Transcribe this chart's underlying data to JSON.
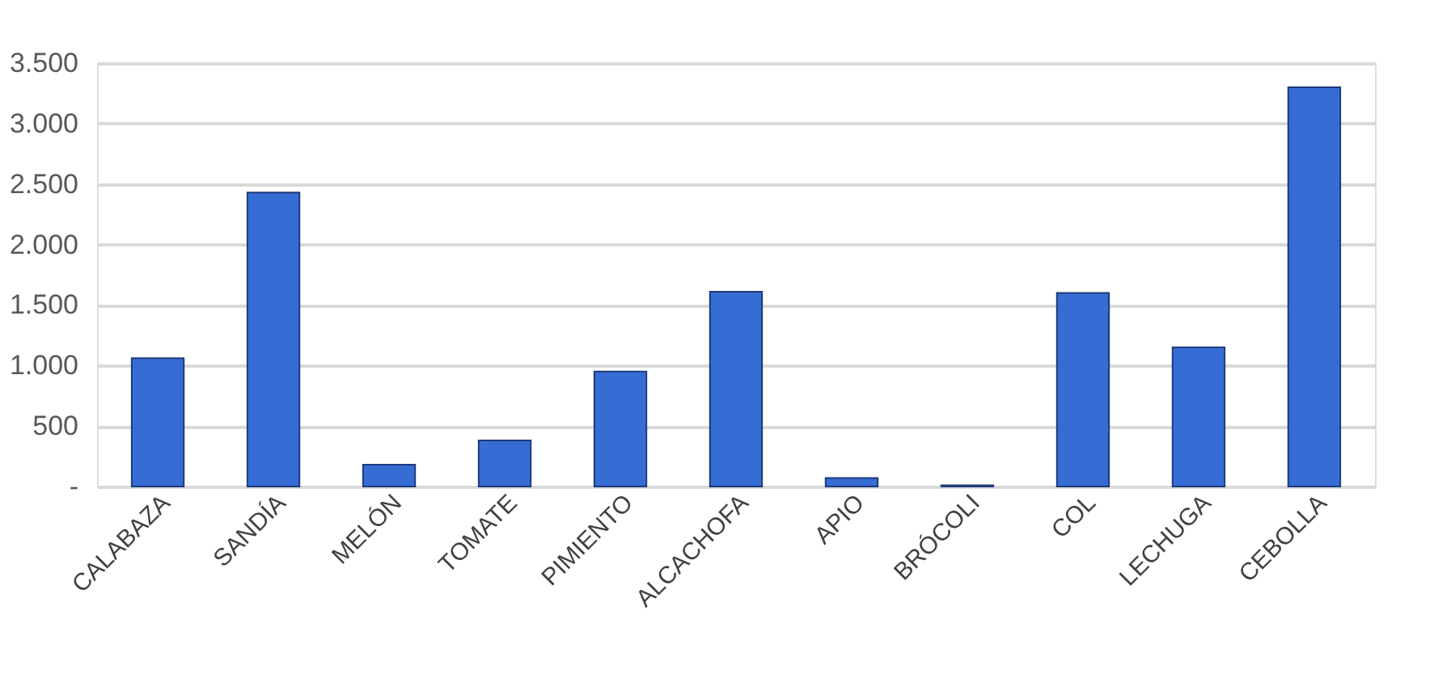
{
  "chart_data": {
    "type": "bar",
    "categories": [
      "CALABAZA",
      "SANDÍA",
      "MELÓN",
      "TOMATE",
      "PIMIENTO",
      "ALCACHOFA",
      "APIO",
      "BRÓCOLI",
      "COL",
      "LECHUGA",
      "CEBOLLA"
    ],
    "values": [
      1060,
      2430,
      180,
      380,
      950,
      1610,
      70,
      10,
      1600,
      1150,
      3300
    ],
    "color": "#366dd4",
    "ylim": [
      0,
      3500
    ],
    "yticks": [
      {
        "value": 0,
        "label": "-"
      },
      {
        "value": 500,
        "label": "500"
      },
      {
        "value": 1000,
        "label": "1.000"
      },
      {
        "value": 1500,
        "label": "1.500"
      },
      {
        "value": 2000,
        "label": "2.000"
      },
      {
        "value": 2500,
        "label": "2.500"
      },
      {
        "value": 3000,
        "label": "3.000"
      },
      {
        "value": 3500,
        "label": "3.500"
      }
    ],
    "grid": "y"
  }
}
